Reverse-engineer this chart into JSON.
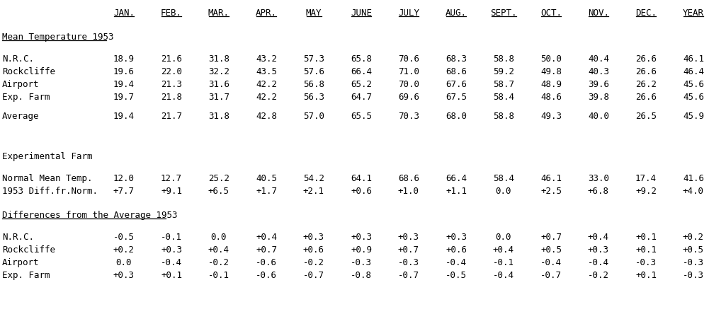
{
  "bg_color": "#ffffff",
  "text_color": "#000000",
  "figsize": [
    10.25,
    4.61
  ],
  "dpi": 100,
  "font_size": 9.0,
  "header_cols": [
    "JAN.",
    "FEB.",
    "MAR.",
    "APR.",
    "MAY",
    "JUNE",
    "JULY",
    "AUG.",
    "SEPT.",
    "OCT.",
    "NOV.",
    "DEC.",
    "YEAR"
  ],
  "section1_title": "Mean Temperature 1953",
  "section1_rows": [
    [
      "N.R.C.",
      "18.9",
      "21.6",
      "31.8",
      "43.2",
      "57.3",
      "65.8",
      "70.6",
      "68.3",
      "58.8",
      "50.0",
      "40.4",
      "26.6",
      "46.1"
    ],
    [
      "Rockcliffe",
      "19.6",
      "22.0",
      "32.2",
      "43.5",
      "57.6",
      "66.4",
      "71.0",
      "68.6",
      "59.2",
      "49.8",
      "40.3",
      "26.6",
      "46.4"
    ],
    [
      "Airport",
      "19.4",
      "21.3",
      "31.6",
      "42.2",
      "56.8",
      "65.2",
      "70.0",
      "67.6",
      "58.7",
      "48.9",
      "39.6",
      "26.2",
      "45.6"
    ],
    [
      "Exp. Farm",
      "19.7",
      "21.8",
      "31.7",
      "42.2",
      "56.3",
      "64.7",
      "69.6",
      "67.5",
      "58.4",
      "48.6",
      "39.8",
      "26.6",
      "45.6"
    ]
  ],
  "section1_avg": [
    "Average",
    "19.4",
    "21.7",
    "31.8",
    "42.8",
    "57.0",
    "65.5",
    "70.3",
    "68.0",
    "58.8",
    "49.3",
    "40.0",
    "26.5",
    "45.9"
  ],
  "section2_title": "Experimental Farm",
  "section2_rows": [
    [
      "Normal Mean Temp.",
      "12.0",
      "12.7",
      "25.2",
      "40.5",
      "54.2",
      "64.1",
      "68.6",
      "66.4",
      "58.4",
      "46.1",
      "33.0",
      "17.4",
      "41.6"
    ],
    [
      "1953 Diff.fr.Norm.",
      "+7.7",
      "+9.1",
      "+6.5",
      "+1.7",
      "+2.1",
      "+0.6",
      "+1.0",
      "+1.1",
      "0.0",
      "+2.5",
      "+6.8",
      "+9.2",
      "+4.0"
    ]
  ],
  "section3_title": "Differences from the Average 1953",
  "section3_rows": [
    [
      "N.R.C.",
      "-0.5",
      "-0.1",
      "0.0",
      "+0.4",
      "+0.3",
      "+0.3",
      "+0.3",
      "+0.3",
      "0.0",
      "+0.7",
      "+0.4",
      "+0.1",
      "+0.2"
    ],
    [
      "Rockcliffe",
      "+0.2",
      "+0.3",
      "+0.4",
      "+0.7",
      "+0.6",
      "+0.9",
      "+0.7",
      "+0.6",
      "+0.4",
      "+0.5",
      "+0.3",
      "+0.1",
      "+0.5"
    ],
    [
      "Airport",
      "0.0",
      "-0.4",
      "-0.2",
      "-0.6",
      "-0.2",
      "-0.3",
      "-0.3",
      "-0.4",
      "-0.1",
      "-0.4",
      "-0.4",
      "-0.3",
      "-0.3"
    ],
    [
      "Exp. Farm",
      "+0.3",
      "+0.1",
      "-0.1",
      "-0.6",
      "-0.7",
      "-0.8",
      "-0.7",
      "-0.5",
      "-0.4",
      "-0.7",
      "-0.2",
      "+0.1",
      "-0.3"
    ]
  ]
}
